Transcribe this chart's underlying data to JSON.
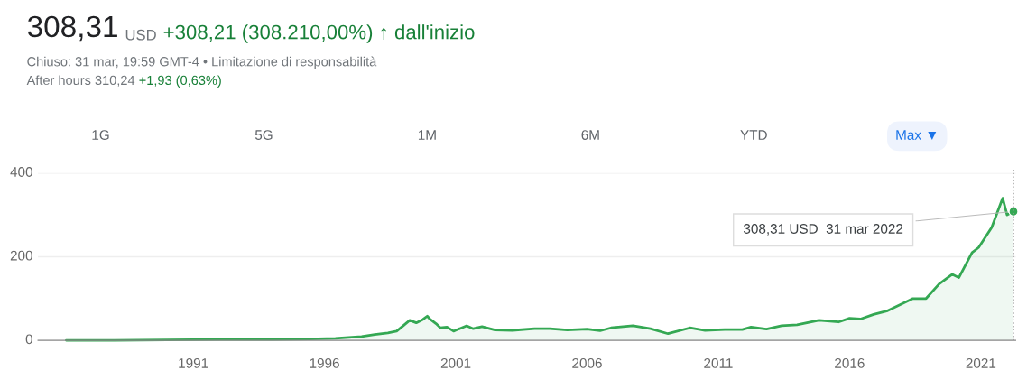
{
  "chart_data": {
    "type": "area",
    "title": "308,31",
    "annotations": [
      "USD",
      "+308,21 (308.210,00%) ↑ dall'inizio",
      "Chiuso: 31 mar, 19:59 GMT-4 • Limitazione di responsabilità",
      "After hours 310,24",
      "+1,93 (0,63%)",
      "1G",
      "5G",
      "1M",
      "6M",
      "YTD",
      "Max ▼",
      {
        "text": "308,31 USD  31 mar 2022",
        "x": "2022-03-31",
        "y": 308.31
      }
    ],
    "x": [
      "1986-03",
      "1988-01",
      "1990-01",
      "1992-01",
      "1994-01",
      "1995-06",
      "1996-06",
      "1997-06",
      "1997-12",
      "1998-06",
      "1998-10",
      "1999-01",
      "1999-04",
      "1999-07",
      "1999-10",
      "1999-12",
      "2000-01",
      "2000-04",
      "2000-06",
      "2000-09",
      "2000-12",
      "2001-06",
      "2001-09",
      "2002-01",
      "2002-07",
      "2003-03",
      "2004-01",
      "2004-08",
      "2005-04",
      "2006-01",
      "2006-07",
      "2006-12",
      "2007-10",
      "2008-06",
      "2009-02",
      "2009-12",
      "2010-07",
      "2011-04",
      "2011-12",
      "2012-04",
      "2012-11",
      "2013-06",
      "2014-01",
      "2014-11",
      "2015-08",
      "2016-01",
      "2016-06",
      "2016-12",
      "2017-06",
      "2017-12",
      "2018-06",
      "2018-12",
      "2019-06",
      "2019-12",
      "2020-03",
      "2020-09",
      "2020-12",
      "2021-06",
      "2021-11",
      "2022-01",
      "2022-03-31"
    ],
    "series": [
      {
        "color": "#34a853",
        "values": [
          0,
          0,
          1,
          2,
          2,
          3,
          5,
          9,
          14,
          18,
          22,
          35,
          48,
          42,
          50,
          58,
          52,
          40,
          30,
          32,
          22,
          35,
          28,
          33,
          25,
          24,
          28,
          28,
          25,
          27,
          23,
          30,
          35,
          28,
          16,
          30,
          24,
          26,
          26,
          32,
          27,
          35,
          37,
          48,
          44,
          53,
          51,
          62,
          70,
          85,
          100,
          100,
          135,
          158,
          150,
          210,
          222,
          270,
          340,
          300,
          308
        ]
      }
    ],
    "xlim": [
      "1985-02-01",
      "2022-05-01"
    ],
    "xticks": [
      "1991",
      "1996",
      "2001",
      "2006",
      "2011",
      "2016",
      "2021"
    ],
    "ylim": [
      0,
      400
    ],
    "yticks": [
      0,
      200,
      400
    ],
    "grid": "y",
    "ref_lines": [
      {
        "axis": "x",
        "value": "2022-03-31",
        "color": "#999999",
        "line_style": "dotted"
      }
    ]
  }
}
